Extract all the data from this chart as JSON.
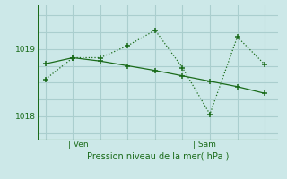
{
  "xlabel": "Pression niveau de la mer( hPa )",
  "bg_color": "#cce8e8",
  "grid_color": "#aacece",
  "line_color": "#1a6b1a",
  "line1_x": [
    0,
    1,
    2,
    3,
    4,
    5,
    6,
    7,
    8
  ],
  "line1_y": [
    1018.55,
    1018.87,
    1018.87,
    1019.05,
    1019.28,
    1018.72,
    1018.03,
    1019.18,
    1018.77
  ],
  "line2_x": [
    0,
    1,
    2,
    3,
    4,
    5,
    6,
    7,
    8
  ],
  "line2_y": [
    1018.78,
    1018.87,
    1018.82,
    1018.75,
    1018.68,
    1018.6,
    1018.52,
    1018.44,
    1018.34
  ],
  "xtick_positions": [
    1.2,
    5.8
  ],
  "xtick_labels": [
    "| Ven",
    "| Sam"
  ],
  "ytick_positions": [
    1018.0,
    1019.0
  ],
  "ytick_labels": [
    "1018",
    "1019"
  ],
  "ylim": [
    1017.65,
    1019.65
  ],
  "xlim": [
    -0.3,
    8.5
  ]
}
